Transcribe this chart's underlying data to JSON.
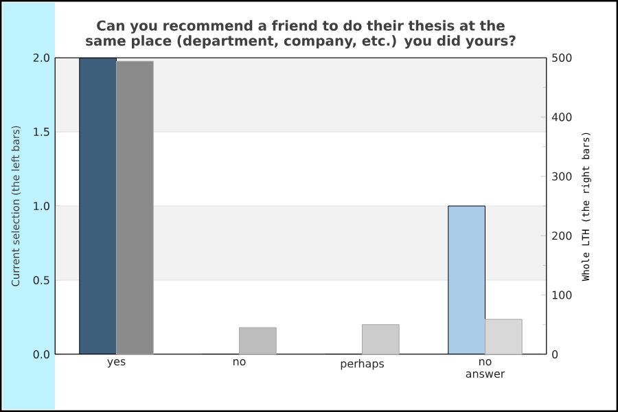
{
  "chart_data": {
    "type": "bar",
    "title": "Can you recommend a friend to do their thesis at the same place (department, company, etc.) you did yours?",
    "categories": [
      "yes",
      "no",
      "perhaps",
      "no answer"
    ],
    "ylabel": "Current selection (the left bars)",
    "y2label": "Whole LTH (the right bars)",
    "series": [
      {
        "colors": [
          "#3d5f7c",
          "#3d5f7c",
          "#3d5f7c",
          "#aacce8"
        ],
        "values": [
          2,
          0,
          0,
          1
        ]
      },
      {
        "axis": "y2",
        "colors": [
          "#8a8a8a",
          "#bdbdbd",
          "#cccccc",
          "#d8d8d8"
        ],
        "values": [
          494,
          45,
          50,
          59
        ]
      }
    ],
    "ylim": [
      0,
      2
    ],
    "yticks": [
      {
        "value": 0,
        "label": "0.0"
      },
      {
        "value": 0.5,
        "label": "0.5"
      },
      {
        "value": 1,
        "label": "1.0"
      },
      {
        "value": 1.5,
        "label": "1.5"
      },
      {
        "value": 2,
        "label": "2.0"
      }
    ],
    "y2lim": [
      0,
      500
    ],
    "y2ticks": [
      0,
      100,
      200,
      300,
      400,
      500
    ],
    "grid": "y"
  }
}
